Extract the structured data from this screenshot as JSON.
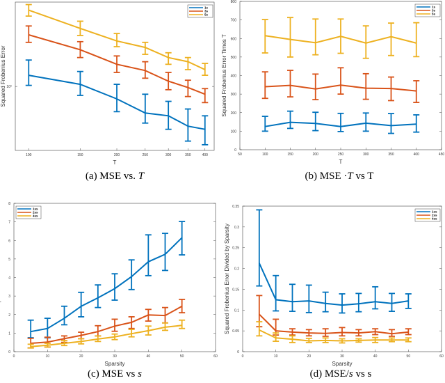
{
  "colors": [
    "#0072BD",
    "#D95319",
    "#EDB120"
  ],
  "captions": [
    {
      "prefix": "(a) MSE vs. ",
      "var": "T",
      "suffix": ""
    },
    {
      "prefix": "(b) MSE ·",
      "var": "T",
      "suffix": " vs T"
    },
    {
      "prefix": "(c) MSE vs ",
      "var": "s",
      "suffix": ""
    },
    {
      "prefix": "(d) MSE/",
      "var": "s",
      "suffix": " vs s"
    }
  ],
  "chart_data": [
    {
      "type": "line",
      "error_bars": true,
      "xscale": "log",
      "yscale": "log",
      "xlabel": "T",
      "ylabel": "Squared Frobenius Error",
      "xlim": [
        90,
        430
      ],
      "ylim": [
        0.55,
        2.2
      ],
      "xticks": [
        100,
        150,
        200,
        250,
        300,
        350,
        400
      ],
      "yticks": [
        1
      ],
      "ytick_labels": [
        "10⁰"
      ],
      "legend": "top-right",
      "grid": false,
      "x": [
        100,
        150,
        200,
        250,
        300,
        350,
        400
      ],
      "series": [
        {
          "name": "1s",
          "y": [
            1.11,
            1.02,
            0.89,
            0.78,
            0.76,
            0.69,
            0.67
          ],
          "lower": [
            1.01,
            0.92,
            0.79,
            0.71,
            0.67,
            0.6,
            0.58
          ],
          "upper": [
            1.28,
            1.15,
            1.02,
            0.93,
            0.87,
            0.81,
            0.76
          ]
        },
        {
          "name": "3s",
          "y": [
            1.62,
            1.41,
            1.23,
            1.16,
            1.05,
            0.99,
            0.93
          ],
          "lower": [
            1.51,
            1.31,
            1.14,
            1.08,
            0.97,
            0.91,
            0.86
          ],
          "upper": [
            1.76,
            1.52,
            1.33,
            1.26,
            1.14,
            1.06,
            0.98
          ]
        },
        {
          "name": "5s",
          "y": [
            2.04,
            1.72,
            1.53,
            1.44,
            1.31,
            1.26,
            1.17
          ],
          "lower": [
            1.93,
            1.61,
            1.45,
            1.35,
            1.23,
            1.17,
            1.11
          ],
          "upper": [
            2.15,
            1.84,
            1.64,
            1.51,
            1.37,
            1.31,
            1.24
          ]
        }
      ]
    },
    {
      "type": "line",
      "error_bars": true,
      "xlabel": "T",
      "ylabel": "Squared Frobenius Error Times T",
      "xlim": [
        50,
        450
      ],
      "ylim": [
        0,
        800
      ],
      "xticks": [
        50,
        100,
        150,
        200,
        250,
        300,
        350,
        400,
        450
      ],
      "yticks": [
        0,
        100,
        200,
        300,
        400,
        500,
        600,
        700,
        800
      ],
      "legend": "top-right",
      "grid": false,
      "x": [
        100,
        150,
        200,
        250,
        300,
        350,
        400
      ],
      "series": [
        {
          "name": "1s",
          "y": [
            125,
            148,
            142,
            125,
            143,
            130,
            138
          ],
          "lower": [
            100,
            115,
            103,
            98,
            100,
            88,
            95
          ],
          "upper": [
            180,
            208,
            202,
            196,
            198,
            195,
            188
          ]
        },
        {
          "name": "3s",
          "y": [
            340,
            347,
            328,
            348,
            332,
            330,
            317
          ],
          "lower": [
            277,
            285,
            270,
            300,
            272,
            265,
            255
          ],
          "upper": [
            420,
            428,
            408,
            442,
            410,
            392,
            372
          ]
        },
        {
          "name": "5s",
          "y": [
            615,
            595,
            577,
            612,
            575,
            610,
            575
          ],
          "lower": [
            522,
            500,
            512,
            520,
            493,
            508,
            502
          ],
          "upper": [
            702,
            713,
            705,
            705,
            668,
            683,
            685
          ]
        }
      ]
    },
    {
      "type": "line",
      "error_bars": true,
      "xlabel": "Sparsity",
      "ylabel": "Squared Frobenius Error",
      "xlim": [
        0,
        60
      ],
      "ylim": [
        0,
        8
      ],
      "xticks": [
        0,
        10,
        20,
        30,
        40,
        50,
        60
      ],
      "yticks": [
        0,
        1,
        2,
        3,
        4,
        5,
        6,
        7,
        8
      ],
      "legend": "top-left",
      "grid": false,
      "x": [
        5,
        10,
        15,
        20,
        25,
        30,
        35,
        40,
        45,
        50
      ],
      "series": [
        {
          "name": "1ss",
          "y": [
            1.08,
            1.25,
            1.8,
            2.45,
            2.9,
            3.4,
            4.05,
            4.85,
            5.25,
            6.15
          ],
          "lower": [
            0.75,
            0.75,
            1.45,
            1.88,
            2.38,
            2.78,
            3.35,
            4.1,
            4.38,
            5.22
          ],
          "upper": [
            1.7,
            1.8,
            2.45,
            3.2,
            3.6,
            4.2,
            4.95,
            6.3,
            6.38,
            7.02
          ]
        },
        {
          "name": "2ss",
          "y": [
            0.45,
            0.52,
            0.7,
            0.88,
            1.08,
            1.38,
            1.58,
            1.98,
            1.95,
            2.45
          ],
          "lower": [
            0.2,
            0.25,
            0.5,
            0.7,
            0.85,
            1.1,
            1.25,
            1.65,
            1.55,
            2.1
          ],
          "upper": [
            0.72,
            0.78,
            0.85,
            1.05,
            1.4,
            1.75,
            1.88,
            2.28,
            2.38,
            2.82
          ]
        },
        {
          "name": "4ss",
          "y": [
            0.27,
            0.35,
            0.45,
            0.55,
            0.68,
            0.8,
            0.97,
            1.13,
            1.32,
            1.42
          ],
          "lower": [
            0.2,
            0.25,
            0.33,
            0.42,
            0.55,
            0.65,
            0.8,
            0.9,
            1.15,
            1.25
          ],
          "upper": [
            0.4,
            0.45,
            0.6,
            0.7,
            0.85,
            0.95,
            1.2,
            1.38,
            1.55,
            1.7
          ]
        }
      ]
    },
    {
      "type": "line",
      "error_bars": true,
      "xlabel": "Sparsity",
      "ylabel": "Squared Frobenius Error Divided by Sparsity",
      "xlim": [
        0,
        60
      ],
      "ylim": [
        0,
        0.35
      ],
      "xticks": [
        0,
        10,
        20,
        30,
        40,
        50,
        60
      ],
      "yticks": [
        0,
        0.05,
        0.1,
        0.15,
        0.2,
        0.25,
        0.3,
        0.35
      ],
      "legend": "top-right",
      "grid": false,
      "x": [
        5,
        10,
        15,
        20,
        25,
        30,
        35,
        40,
        45,
        50
      ],
      "series": [
        {
          "name": "1ss",
          "y": [
            0.213,
            0.125,
            0.12,
            0.122,
            0.116,
            0.112,
            0.115,
            0.12,
            0.116,
            0.122
          ],
          "lower": [
            0.158,
            0.098,
            0.097,
            0.094,
            0.096,
            0.093,
            0.096,
            0.103,
            0.097,
            0.104
          ],
          "upper": [
            0.341,
            0.183,
            0.162,
            0.16,
            0.143,
            0.139,
            0.14,
            0.156,
            0.14,
            0.139
          ]
        },
        {
          "name": "2ss",
          "y": [
            0.09,
            0.05,
            0.047,
            0.045,
            0.044,
            0.046,
            0.045,
            0.048,
            0.043,
            0.047
          ],
          "lower": [
            0.06,
            0.04,
            0.04,
            0.038,
            0.037,
            0.038,
            0.038,
            0.041,
            0.037,
            0.041
          ],
          "upper": [
            0.135,
            0.078,
            0.055,
            0.053,
            0.055,
            0.058,
            0.053,
            0.055,
            0.053,
            0.055
          ]
        },
        {
          "name": "4ss",
          "y": [
            0.052,
            0.033,
            0.03,
            0.026,
            0.027,
            0.026,
            0.027,
            0.028,
            0.028,
            0.028
          ],
          "lower": [
            0.038,
            0.025,
            0.022,
            0.022,
            0.022,
            0.021,
            0.023,
            0.022,
            0.024,
            0.024
          ],
          "upper": [
            0.072,
            0.045,
            0.038,
            0.032,
            0.033,
            0.031,
            0.031,
            0.034,
            0.033,
            0.033
          ]
        }
      ]
    }
  ]
}
